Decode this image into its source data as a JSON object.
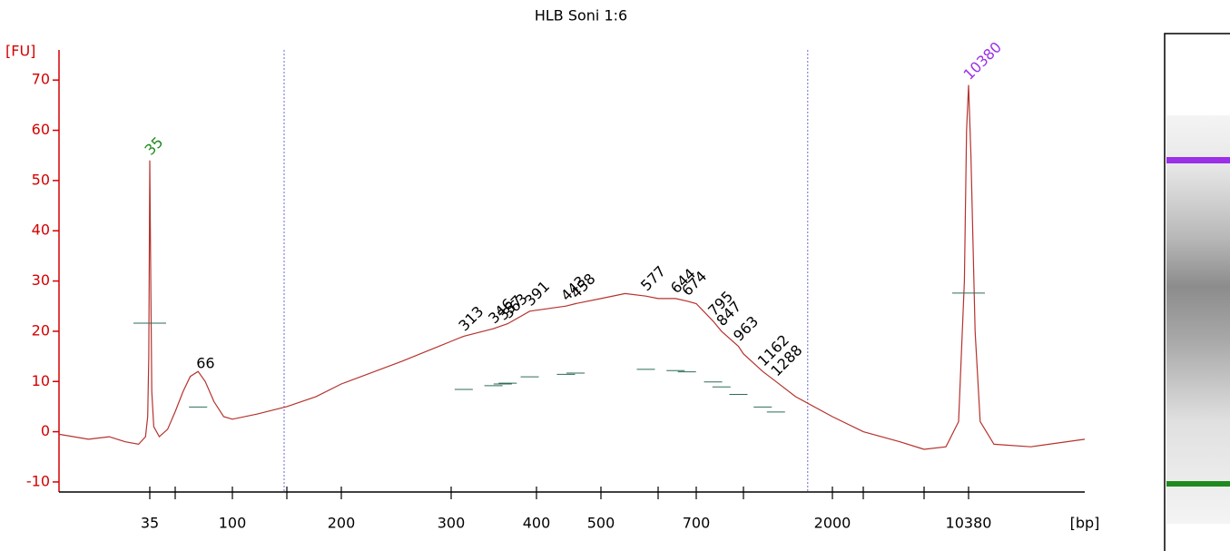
{
  "chart_data": {
    "type": "line",
    "title": "HLB Soni 1:6",
    "y_label": "[FU]",
    "x_label": "[bp]",
    "xlim": [
      10,
      29000
    ],
    "xticks": [
      35,
      {
        "value": 50,
        "label": null
      },
      100,
      {
        "value": 150,
        "label": null
      },
      200,
      300,
      400,
      500,
      {
        "value": 600,
        "label": null
      },
      700,
      {
        "value": 1000,
        "label": null
      },
      2000,
      {
        "value": 3000,
        "label": null
      },
      {
        "value": 7000,
        "label": null
      },
      10380
    ],
    "ylim": [
      -12,
      76
    ],
    "yticks": [
      -10,
      0,
      10,
      20,
      30,
      40,
      50,
      60,
      70
    ],
    "axis_color": "#d40000",
    "regions": [
      147,
      1650
    ],
    "region_color": "#6a6ad0",
    "series": [
      {
        "name": "HLB Soni 1:6",
        "color": "#b5322e",
        "x": [
          10,
          15,
          20,
          25,
          30,
          33,
          34,
          34.5,
          35,
          35.5,
          36,
          37,
          40,
          45,
          50,
          55,
          60,
          66,
          72,
          80,
          90,
          100,
          120,
          150,
          175,
          200,
          250,
          300,
          313,
          346,
          363,
          391,
          443,
          458,
          500,
          540,
          577,
          600,
          644,
          674,
          700,
          795,
          847,
          963,
          1000,
          1162,
          1288,
          1500,
          2000,
          3000,
          5000,
          7000,
          8500,
          9500,
          10000,
          10200,
          10380,
          10600,
          11000,
          11500,
          13000,
          18000,
          29000
        ],
        "values": [
          -0.5,
          -1.5,
          -1,
          -2,
          -2.5,
          -1,
          3,
          15,
          54,
          30,
          8,
          1,
          -1,
          0.5,
          4,
          8,
          11,
          12,
          10,
          6,
          3,
          2.5,
          3.5,
          5,
          7,
          9.5,
          14,
          18,
          19,
          20.5,
          21.5,
          24,
          25,
          25.5,
          26.5,
          27.5,
          27,
          26.5,
          26.5,
          26,
          25.5,
          22,
          20,
          17,
          15.5,
          12,
          10,
          7,
          3,
          0,
          -2,
          -3.5,
          -3,
          2,
          30,
          60,
          69,
          55,
          20,
          2,
          -2.5,
          -3,
          -1.5
        ]
      }
    ],
    "peaks": [
      {
        "value": 35,
        "color": "#1f8a1f"
      },
      {
        "value": 66,
        "color": "#000000"
      },
      {
        "value": 313,
        "color": "#000000"
      },
      {
        "value": 346,
        "color": "#000000"
      },
      {
        "value": 357,
        "color": "#000000"
      },
      {
        "value": 363,
        "color": "#000000"
      },
      {
        "value": 391,
        "color": "#000000"
      },
      {
        "value": 443,
        "color": "#000000"
      },
      {
        "value": 458,
        "color": "#000000"
      },
      {
        "value": 577,
        "color": "#000000"
      },
      {
        "value": 644,
        "color": "#000000"
      },
      {
        "value": 674,
        "color": "#000000"
      },
      {
        "value": 795,
        "color": "#000000"
      },
      {
        "value": 847,
        "color": "#000000"
      },
      {
        "value": 963,
        "color": "#000000"
      },
      {
        "value": 1162,
        "color": "#000000"
      },
      {
        "value": 1288,
        "color": "#000000"
      },
      {
        "value": 10380,
        "color": "#9b30e8"
      }
    ]
  }
}
